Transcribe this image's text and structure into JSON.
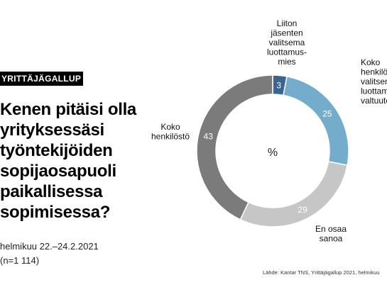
{
  "badge": "YRITTÄJÄGALLUP",
  "headline": [
    "Kenen pitäisi olla",
    "yrityksessäsi",
    "työntekijöiden",
    "sopijaosapuoli",
    "paikallisessa",
    "sopimisessa?"
  ],
  "meta": {
    "period": "helmikuu 22.–24.2.2021",
    "sample": "(n=1 114)"
  },
  "source": "Lähde: Kantar TNS, Yrittäjägallup 2021, helmikuu",
  "chart_data": {
    "type": "pie",
    "center_label": "%",
    "slices": [
      {
        "label": [
          "Liiton",
          "jäsenten",
          "valitsema",
          "luottamus-",
          "mies"
        ],
        "value": 3,
        "color": "#3b6591"
      },
      {
        "label": [
          "Koko",
          "henkilöstön",
          "valitsema",
          "luottamus-",
          "valtuutettu"
        ],
        "value": 25,
        "color": "#74adcc"
      },
      {
        "label": [
          "En osaa",
          "sanoa"
        ],
        "value": 29,
        "color": "#c6c6c6"
      },
      {
        "label": [
          "Koko",
          "henkilöstö"
        ],
        "value": 43,
        "color": "#7b7b7b"
      }
    ]
  }
}
